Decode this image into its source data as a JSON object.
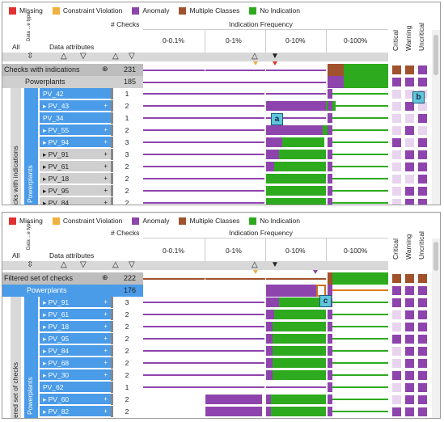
{
  "legend": [
    {
      "label": "Missing",
      "color": "#e03030"
    },
    {
      "label": "Constraint Violation",
      "color": "#f0b040"
    },
    {
      "label": "Anomaly",
      "color": "#8e44ad"
    },
    {
      "label": "Multiple Classes",
      "color": "#a0522d"
    },
    {
      "label": "No Indication",
      "color": "#2eaa1e"
    }
  ],
  "colors": {
    "selected": "#4a9be8",
    "anomaly": "#8e44ad",
    "noind": "#2eaa1e",
    "multi": "#a0522d"
  },
  "header": {
    "all": "All",
    "data_type": "Data ...e type",
    "data_attributes": "Data attributes",
    "checks": "# Checks",
    "frequency": "Indication Frequency",
    "bins": [
      "0-0.1%",
      "0-1%",
      "0-10%",
      "0-100%"
    ],
    "severity": [
      "Critical",
      "Warning",
      "Uncritical"
    ]
  },
  "top": {
    "group_label": "Checks with indications",
    "group_count": "231",
    "sub_label": "Powerplants",
    "sub_count": "185",
    "side_outer": "cks with indications",
    "side_inner": "Powerplants",
    "rows": [
      {
        "label": "PV_42",
        "count": "1",
        "sel": true,
        "plus": false,
        "expand": false
      },
      {
        "label": "PV_43",
        "count": "2",
        "sel": true,
        "plus": true,
        "expand": true
      },
      {
        "label": "PV_34",
        "count": "1",
        "sel": true,
        "plus": false,
        "expand": false
      },
      {
        "label": "PV_55",
        "count": "2",
        "sel": true,
        "plus": true,
        "expand": true
      },
      {
        "label": "PV_94",
        "count": "3",
        "sel": true,
        "plus": true,
        "expand": true
      },
      {
        "label": "PV_91",
        "count": "3",
        "sel": false,
        "plus": true,
        "expand": true
      },
      {
        "label": "PV_61",
        "count": "2",
        "sel": false,
        "plus": true,
        "expand": true
      },
      {
        "label": "PV_18",
        "count": "2",
        "sel": false,
        "plus": true,
        "expand": true
      },
      {
        "label": "PV_95",
        "count": "2",
        "sel": false,
        "plus": true,
        "expand": true
      },
      {
        "label": "PV_84",
        "count": "2",
        "sel": false,
        "plus": true,
        "expand": true
      }
    ],
    "callouts": [
      "a",
      "b"
    ]
  },
  "bottom": {
    "group_label": "Filtered set of checks",
    "group_count": "222",
    "sub_label": "Powerplants",
    "sub_count": "176",
    "side_outer": "ered set of checks",
    "side_inner": "Powerplants",
    "rows": [
      {
        "label": "PV_91",
        "count": "3",
        "plus": true
      },
      {
        "label": "PV_61",
        "count": "2",
        "plus": true
      },
      {
        "label": "PV_18",
        "count": "2",
        "plus": true
      },
      {
        "label": "PV_95",
        "count": "2",
        "plus": true
      },
      {
        "label": "PV_84",
        "count": "2",
        "plus": true
      },
      {
        "label": "PV_68",
        "count": "2",
        "plus": true
      },
      {
        "label": "PV_30",
        "count": "2",
        "plus": true
      },
      {
        "label": "PV_62",
        "count": "1",
        "plus": false
      },
      {
        "label": "PV_60",
        "count": "2",
        "plus": true
      },
      {
        "label": "PV_82",
        "count": "2",
        "plus": true
      }
    ],
    "callouts": [
      "c"
    ]
  }
}
